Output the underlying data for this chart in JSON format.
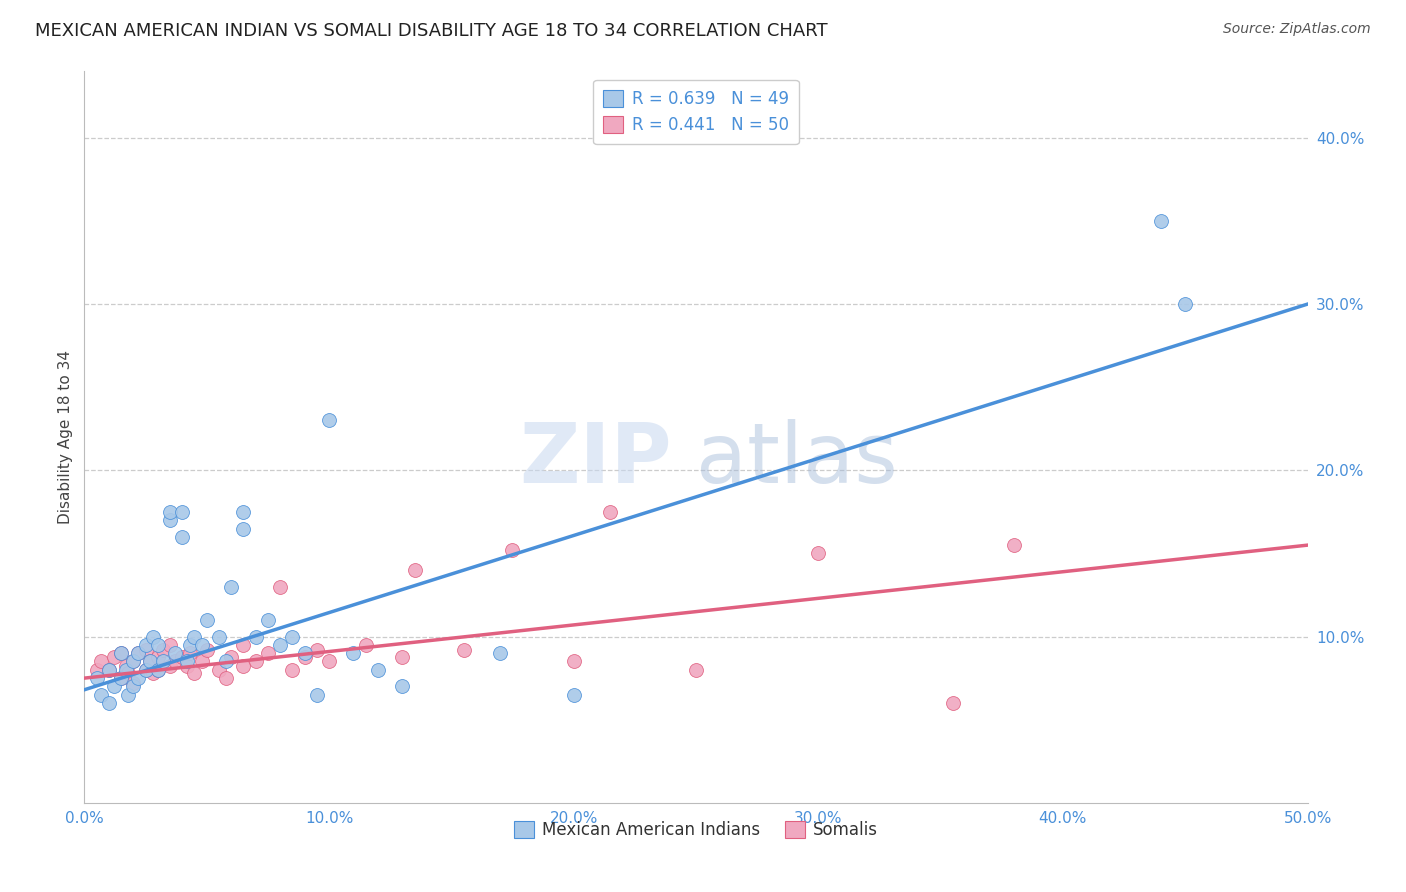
{
  "title": "MEXICAN AMERICAN INDIAN VS SOMALI DISABILITY AGE 18 TO 34 CORRELATION CHART",
  "source": "Source: ZipAtlas.com",
  "ylabel_label": "Disability Age 18 to 34",
  "xlim": [
    0.0,
    0.5
  ],
  "ylim": [
    0.0,
    0.44
  ],
  "xticks": [
    0.0,
    0.1,
    0.2,
    0.3,
    0.4,
    0.5
  ],
  "xtick_labels": [
    "0.0%",
    "10.0%",
    "20.0%",
    "30.0%",
    "40.0%",
    "50.0%"
  ],
  "ytick_positions": [
    0.1,
    0.2,
    0.3,
    0.4
  ],
  "ytick_labels": [
    "10.0%",
    "20.0%",
    "30.0%",
    "40.0%"
  ],
  "grid_color": "#cccccc",
  "background_color": "#ffffff",
  "blue_scatter_x": [
    0.005,
    0.007,
    0.01,
    0.01,
    0.012,
    0.015,
    0.015,
    0.017,
    0.018,
    0.02,
    0.02,
    0.022,
    0.022,
    0.025,
    0.025,
    0.027,
    0.028,
    0.03,
    0.03,
    0.032,
    0.035,
    0.035,
    0.037,
    0.04,
    0.04,
    0.042,
    0.043,
    0.045,
    0.048,
    0.05,
    0.055,
    0.058,
    0.06,
    0.065,
    0.065,
    0.07,
    0.075,
    0.08,
    0.085,
    0.09,
    0.095,
    0.1,
    0.11,
    0.12,
    0.13,
    0.17,
    0.2,
    0.44,
    0.45
  ],
  "blue_scatter_y": [
    0.075,
    0.065,
    0.06,
    0.08,
    0.07,
    0.075,
    0.09,
    0.08,
    0.065,
    0.07,
    0.085,
    0.075,
    0.09,
    0.08,
    0.095,
    0.085,
    0.1,
    0.08,
    0.095,
    0.085,
    0.17,
    0.175,
    0.09,
    0.16,
    0.175,
    0.085,
    0.095,
    0.1,
    0.095,
    0.11,
    0.1,
    0.085,
    0.13,
    0.165,
    0.175,
    0.1,
    0.11,
    0.095,
    0.1,
    0.09,
    0.065,
    0.23,
    0.09,
    0.08,
    0.07,
    0.09,
    0.065,
    0.35,
    0.3
  ],
  "pink_scatter_x": [
    0.005,
    0.007,
    0.01,
    0.012,
    0.015,
    0.015,
    0.017,
    0.018,
    0.02,
    0.02,
    0.022,
    0.025,
    0.025,
    0.027,
    0.028,
    0.03,
    0.03,
    0.032,
    0.035,
    0.035,
    0.037,
    0.04,
    0.042,
    0.043,
    0.045,
    0.048,
    0.05,
    0.055,
    0.058,
    0.06,
    0.065,
    0.065,
    0.07,
    0.075,
    0.08,
    0.085,
    0.09,
    0.095,
    0.1,
    0.115,
    0.13,
    0.135,
    0.155,
    0.175,
    0.2,
    0.215,
    0.25,
    0.3,
    0.355,
    0.38
  ],
  "pink_scatter_y": [
    0.08,
    0.085,
    0.08,
    0.088,
    0.075,
    0.09,
    0.082,
    0.078,
    0.072,
    0.085,
    0.09,
    0.08,
    0.092,
    0.085,
    0.078,
    0.088,
    0.08,
    0.092,
    0.082,
    0.095,
    0.085,
    0.088,
    0.082,
    0.09,
    0.078,
    0.085,
    0.092,
    0.08,
    0.075,
    0.088,
    0.095,
    0.082,
    0.085,
    0.09,
    0.13,
    0.08,
    0.088,
    0.092,
    0.085,
    0.095,
    0.088,
    0.14,
    0.092,
    0.152,
    0.085,
    0.175,
    0.08,
    0.15,
    0.06,
    0.155
  ],
  "blue_line_x": [
    0.0,
    0.5
  ],
  "blue_line_y": [
    0.068,
    0.3
  ],
  "pink_line_x": [
    0.0,
    0.5
  ],
  "pink_line_y": [
    0.075,
    0.155
  ],
  "blue_color": "#4a90d9",
  "pink_color": "#e06080",
  "blue_scatter_color": "#a8c8e8",
  "pink_scatter_color": "#f0a8c0",
  "title_fontsize": 13,
  "axis_label_fontsize": 11,
  "tick_fontsize": 11,
  "legend_fontsize": 12
}
